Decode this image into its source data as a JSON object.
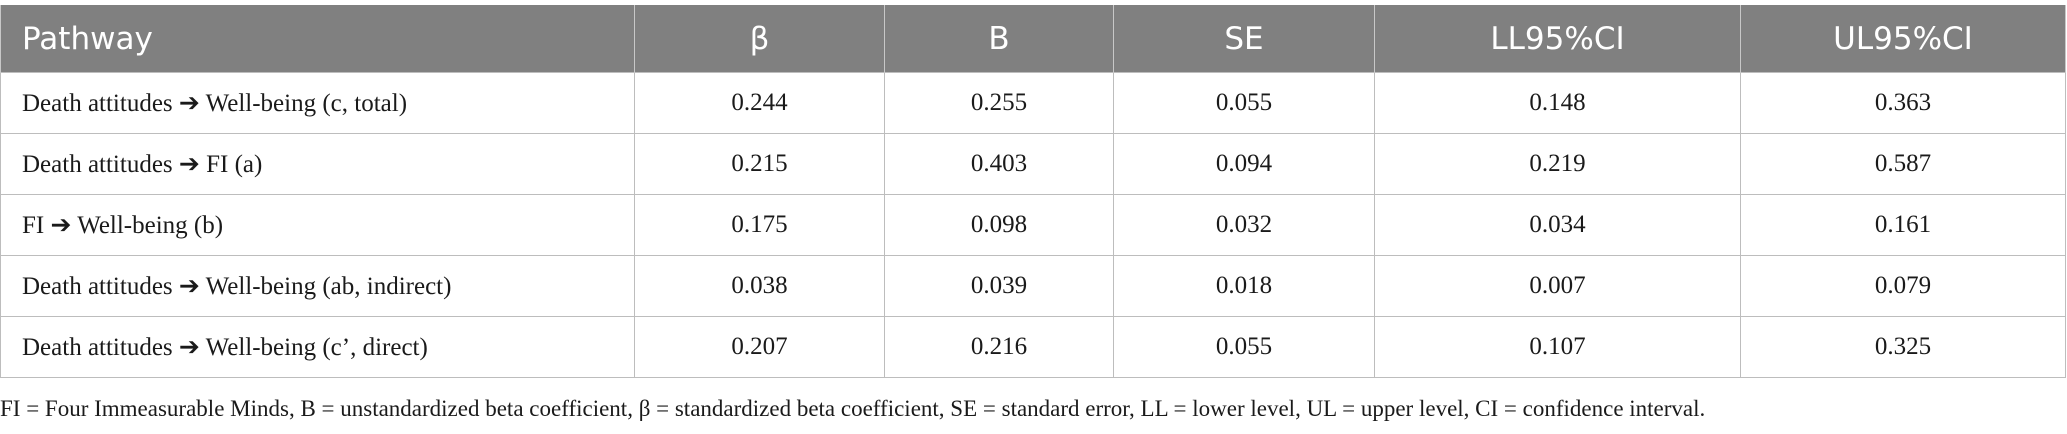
{
  "table": {
    "headers": [
      "Pathway",
      "β",
      "B",
      "SE",
      "LL95%CI",
      "UL95%CI"
    ],
    "rows": [
      [
        "Death attitudes ➔ Well-being (c, total)",
        "0.244",
        "0.255",
        "0.055",
        "0.148",
        "0.363"
      ],
      [
        "Death attitudes ➔ FI (a)",
        "0.215",
        "0.403",
        "0.094",
        "0.219",
        "0.587"
      ],
      [
        "FI ➔ Well-being (b)",
        "0.175",
        "0.098",
        "0.032",
        "0.034",
        "0.161"
      ],
      [
        "Death attitudes ➔ Well-being (ab, indirect)",
        "0.038",
        "0.039",
        "0.018",
        "0.007",
        "0.079"
      ],
      [
        "Death attitudes ➔ Well-being (c’, direct)",
        "0.207",
        "0.216",
        "0.055",
        "0.107",
        "0.325"
      ]
    ]
  },
  "footnote": "FI = Four Immeasurable Minds, B = unstandardized beta coefficient, β = standardized beta coefficient, SE = standard error, LL = lower level, UL = upper level, CI = confidence interval.",
  "colors": {
    "header_bg": "#808080",
    "header_text": "#ffffff",
    "border": "#bdbdbd"
  }
}
